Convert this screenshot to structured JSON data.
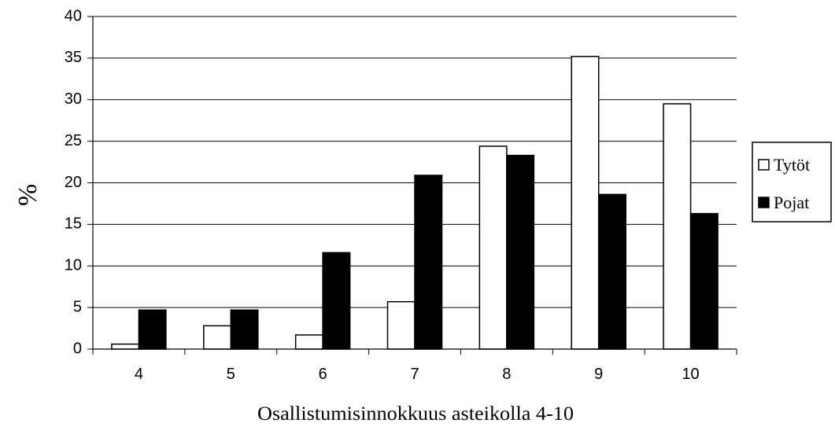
{
  "chart_data": {
    "type": "bar",
    "categories": [
      "4",
      "5",
      "6",
      "7",
      "8",
      "9",
      "10"
    ],
    "series": [
      {
        "name": "Tytöt",
        "color": "#ffffff",
        "values": [
          0.6,
          2.8,
          1.7,
          5.7,
          24.4,
          35.2,
          29.5
        ]
      },
      {
        "name": "Pojat",
        "color": "#000000",
        "values": [
          4.7,
          4.7,
          11.6,
          20.9,
          23.3,
          18.6,
          16.3
        ]
      }
    ],
    "title": "",
    "xlabel": "Osallistumisinnokkuus asteikolla 4-10",
    "ylabel": "%",
    "ylim": [
      0,
      40
    ],
    "yticks": [
      "0",
      "5",
      "10",
      "15",
      "20",
      "25",
      "30",
      "35",
      "40"
    ],
    "grid": true,
    "legend_position": "right"
  }
}
